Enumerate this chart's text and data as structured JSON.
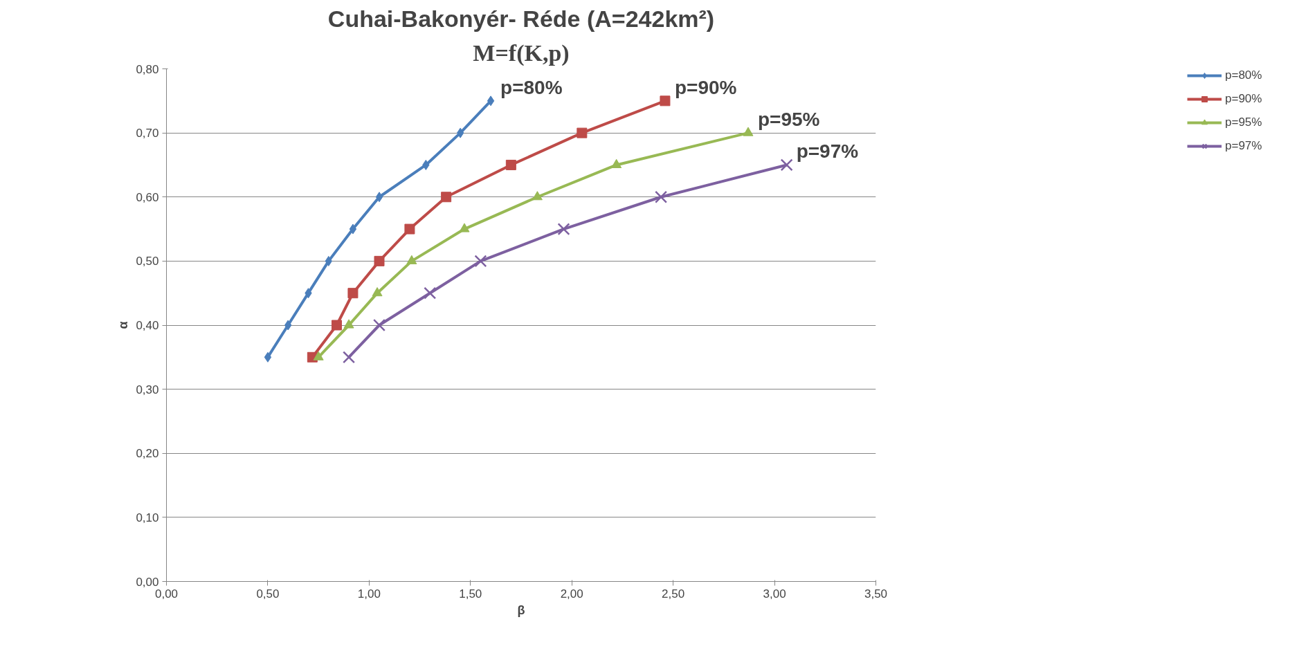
{
  "chart_data": {
    "type": "line",
    "title": "Cuhai-Bakonyér- Réde (A=242km²)",
    "subtitle": "M=f(K,p)",
    "xlabel": "β",
    "ylabel": "α",
    "xlim": [
      0,
      3.5
    ],
    "xticks": [
      {
        "value": 0,
        "label": "0,00"
      },
      {
        "value": 0.5,
        "label": "0,50"
      },
      {
        "value": 1,
        "label": "1,00"
      },
      {
        "value": 1.5,
        "label": "1,50"
      },
      {
        "value": 2,
        "label": "2,00"
      },
      {
        "value": 2.5,
        "label": "2,50"
      },
      {
        "value": 3,
        "label": "3,00"
      },
      {
        "value": 3.5,
        "label": "3,50"
      }
    ],
    "ylim": [
      0,
      0.8
    ],
    "yticks": [
      {
        "value": 0,
        "label": "0,00"
      },
      {
        "value": 0.1,
        "label": "0,10"
      },
      {
        "value": 0.2,
        "label": "0,20"
      },
      {
        "value": 0.3,
        "label": "0,30"
      },
      {
        "value": 0.4,
        "label": "0,40"
      },
      {
        "value": 0.5,
        "label": "0,50"
      },
      {
        "value": 0.6,
        "label": "0,60"
      },
      {
        "value": 0.7,
        "label": "0,70"
      },
      {
        "value": 0.8,
        "label": "0,80"
      }
    ],
    "grid": "y",
    "legend": "right",
    "series": [
      {
        "name": "p=80%",
        "color": "#4a7ebb",
        "marker": "diamond",
        "x": [
          0.5,
          0.6,
          0.7,
          0.8,
          0.92,
          1.05,
          1.28,
          1.45,
          1.6
        ],
        "values": [
          0.35,
          0.4,
          0.45,
          0.5,
          0.55,
          0.6,
          0.65,
          0.7,
          0.75
        ]
      },
      {
        "name": "p=90%",
        "color": "#be4b48",
        "marker": "square",
        "x": [
          0.72,
          0.84,
          0.92,
          1.05,
          1.2,
          1.38,
          1.7,
          2.05,
          2.46
        ],
        "values": [
          0.35,
          0.4,
          0.45,
          0.5,
          0.55,
          0.6,
          0.65,
          0.7,
          0.75
        ]
      },
      {
        "name": "p=95%",
        "color": "#98b954",
        "marker": "triangle",
        "x": [
          0.75,
          0.9,
          1.04,
          1.21,
          1.47,
          1.83,
          2.22,
          2.87
        ],
        "values": [
          0.35,
          0.4,
          0.45,
          0.5,
          0.55,
          0.6,
          0.65,
          0.7
        ]
      },
      {
        "name": "p=97%",
        "color": "#7d60a0",
        "marker": "cross",
        "x": [
          0.9,
          1.05,
          1.3,
          1.55,
          1.96,
          2.44,
          3.06
        ],
        "values": [
          0.35,
          0.4,
          0.45,
          0.5,
          0.55,
          0.6,
          0.65
        ]
      }
    ],
    "annotations": [
      "p=80%",
      "p=90%",
      "p=95%",
      "p=97%"
    ]
  }
}
